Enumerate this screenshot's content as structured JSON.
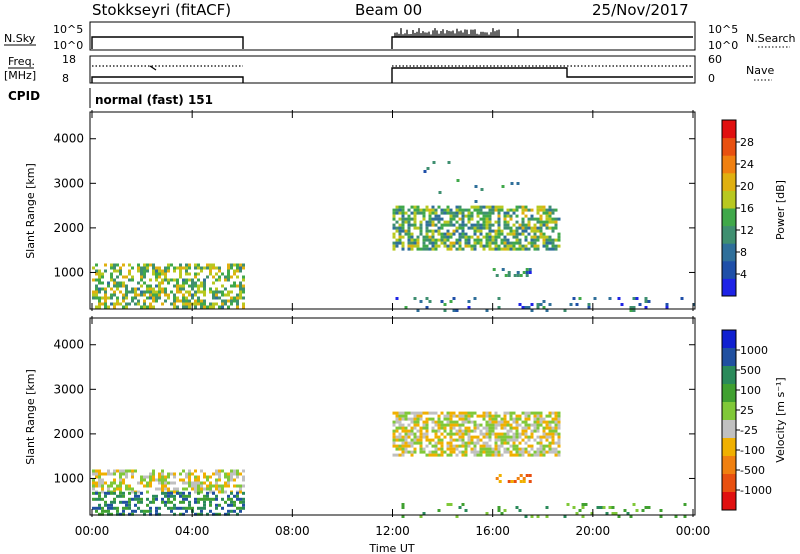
{
  "header": {
    "title": "Stokkseyri (fitACF)",
    "beam": "Beam 00",
    "date": "25/Nov/2017"
  },
  "nsky_panel": {
    "left_label": "N.Sky",
    "left_ticks": [
      "10^5",
      "10^0"
    ],
    "right_label": "N.Search",
    "right_ticks": [
      "10^5",
      "10^0"
    ]
  },
  "freq_panel": {
    "left_label_top": "Freq.",
    "left_label_bottom": "[MHz]",
    "left_ticks": [
      "18",
      "8"
    ],
    "right_label": "Nave",
    "right_ticks": [
      "60",
      "0"
    ]
  },
  "cpid": {
    "label": "CPID",
    "value": "normal (fast) 151"
  },
  "chart_data": [
    {
      "type": "heatmap",
      "parameter": "power",
      "xlabel": "Time UT",
      "ylabel": "Slant Range [km]",
      "x_range_hours": [
        0,
        24
      ],
      "y_range_km": [
        180,
        4600
      ],
      "yticks": [
        1000,
        2000,
        3000,
        4000
      ],
      "xticks": [
        "00:00",
        "04:00",
        "08:00",
        "12:00",
        "16:00",
        "20:00",
        "00:00"
      ],
      "colorbar": {
        "label": "Power [dB]",
        "range": [
          0,
          32
        ],
        "ticks": [
          "4",
          "8",
          "12",
          "16",
          "20",
          "24",
          "28"
        ],
        "colors": [
          "#1e23e6",
          "#1f4fa8",
          "#2f6f9a",
          "#3f8f70",
          "#40a84a",
          "#b8c820",
          "#e0b010",
          "#f08010",
          "#e85010",
          "#e01010"
        ]
      },
      "scatter_regions": [
        {
          "t": [
            0.0,
            6.0
          ],
          "r": [
            200,
            1200
          ],
          "mean": 14,
          "density": 0.55
        },
        {
          "t": [
            12.0,
            18.6
          ],
          "r": [
            1500,
            2500
          ],
          "mean": 12,
          "density": 0.7
        },
        {
          "t": [
            12.0,
            24.0
          ],
          "r": [
            180,
            450
          ],
          "mean": 6,
          "density": 0.12
        },
        {
          "t": [
            13.0,
            17.0
          ],
          "r": [
            2600,
            3500
          ],
          "mean": 8,
          "density": 0.04
        },
        {
          "t": [
            16.0,
            17.5
          ],
          "r": [
            900,
            1100
          ],
          "mean": 7,
          "density": 0.35
        }
      ]
    },
    {
      "type": "heatmap",
      "parameter": "velocity",
      "xlabel": "Time UT",
      "ylabel": "Slant Range [km]",
      "x_range_hours": [
        0,
        24
      ],
      "y_range_km": [
        180,
        4600
      ],
      "yticks": [
        1000,
        2000,
        3000,
        4000
      ],
      "xticks": [
        "00:00",
        "04:00",
        "08:00",
        "12:00",
        "16:00",
        "20:00",
        "00:00"
      ],
      "colorbar": {
        "label": "Velocity [m s⁻¹]",
        "ticks": [
          "1000",
          "500",
          "100",
          "25",
          "-25",
          "-100",
          "-500",
          "-1000"
        ],
        "colors": [
          "#1020d0",
          "#2050a0",
          "#2a8a5a",
          "#40a030",
          "#80c838",
          "#c0c0c0",
          "#f0b000",
          "#f08010",
          "#e85010",
          "#e01010"
        ]
      },
      "scatter_regions": [
        {
          "t": [
            0.0,
            6.0
          ],
          "r": [
            700,
            1200
          ],
          "mean": 5,
          "density": 0.55
        },
        {
          "t": [
            0.0,
            6.0
          ],
          "r": [
            200,
            700
          ],
          "mean": 2,
          "density": 0.5
        },
        {
          "t": [
            12.0,
            18.6
          ],
          "r": [
            1500,
            2500
          ],
          "mean": 5,
          "density": 0.7
        },
        {
          "t": [
            12.0,
            24.0
          ],
          "r": [
            180,
            450
          ],
          "mean": 3,
          "density": 0.12
        },
        {
          "t": [
            16.0,
            17.5
          ],
          "r": [
            900,
            1100
          ],
          "mean": 7,
          "density": 0.35
        }
      ]
    }
  ]
}
